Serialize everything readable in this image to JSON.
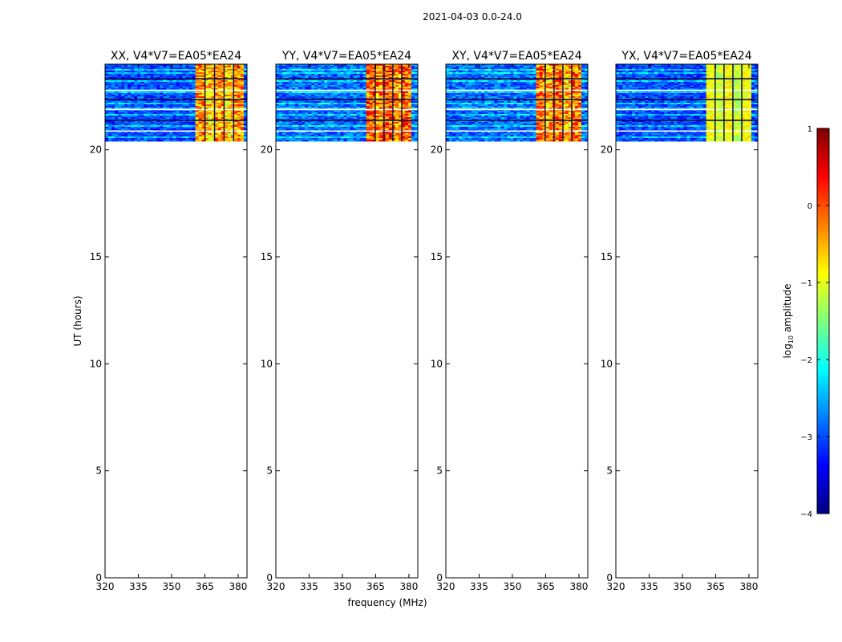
{
  "figure": {
    "suptitle": "2021-04-03 0.0-24.0",
    "xlabel": "frequency (MHz)",
    "ylabel": "UT (hours)"
  },
  "colorbar": {
    "label": "log10 amplitude",
    "label_main": "log",
    "label_sub": "10",
    "label_tail": " amplitude",
    "ticks": [
      1,
      0,
      -1,
      -2,
      -3,
      -4
    ],
    "tick_labels": [
      "1",
      "0",
      "−1",
      "−2",
      "−3",
      "−4"
    ],
    "range": [
      -4,
      1
    ],
    "colormap": "jet",
    "colors": [
      "#00007f",
      "#0000ff",
      "#007fff",
      "#00ffff",
      "#7fff7f",
      "#ffff00",
      "#ff7f00",
      "#ff0000",
      "#7f0000"
    ]
  },
  "chart_data": [
    {
      "type": "heatmap",
      "title": "XX, V4*V7=EA05*EA24",
      "xlabel": "",
      "ylabel": "UT (hours)",
      "xlim": [
        320,
        384
      ],
      "ylim": [
        0,
        24
      ],
      "x_ticks": [
        320,
        335,
        350,
        365,
        380
      ],
      "y_ticks": [
        0,
        5,
        10,
        15,
        20
      ],
      "data_time_range": [
        20.4,
        24.0
      ],
      "rfi_band_mhz": [
        360.5,
        382.0
      ],
      "rfi_level_log10": [
        -1.0,
        0.3
      ],
      "background_level_log10": [
        -3.4,
        -2.6
      ]
    },
    {
      "type": "heatmap",
      "title": "YY, V4*V7=EA05*EA24",
      "xlabel": "frequency (MHz)",
      "ylabel": "",
      "xlim": [
        320,
        384
      ],
      "ylim": [
        0,
        24
      ],
      "x_ticks": [
        320,
        335,
        350,
        365,
        380
      ],
      "y_ticks": [
        0,
        5,
        10,
        15,
        20
      ],
      "data_time_range": [
        20.4,
        24.0
      ],
      "rfi_band_mhz": [
        360.5,
        380.5
      ],
      "rfi_level_log10": [
        -0.8,
        0.7
      ],
      "background_level_log10": [
        -3.3,
        -2.4
      ]
    },
    {
      "type": "heatmap",
      "title": "XY, V4*V7=EA05*EA24",
      "xlabel": "",
      "ylabel": "",
      "xlim": [
        320,
        384
      ],
      "ylim": [
        0,
        24
      ],
      "x_ticks": [
        320,
        335,
        350,
        365,
        380
      ],
      "y_ticks": [
        0,
        5,
        10,
        15,
        20
      ],
      "data_time_range": [
        20.4,
        24.0
      ],
      "rfi_band_mhz": [
        360.5,
        380.5
      ],
      "rfi_level_log10": [
        -0.9,
        0.5
      ],
      "background_level_log10": [
        -3.3,
        -2.4
      ]
    },
    {
      "type": "heatmap",
      "title": "YX, V4*V7=EA05*EA24",
      "xlabel": "",
      "ylabel": "",
      "xlim": [
        320,
        384
      ],
      "ylim": [
        0,
        24
      ],
      "x_ticks": [
        320,
        335,
        350,
        365,
        380
      ],
      "y_ticks": [
        0,
        5,
        10,
        15,
        20
      ],
      "data_time_range": [
        20.4,
        24.0
      ],
      "rfi_band_mhz": [
        360.5,
        380.5
      ],
      "rfi_level_log10": [
        -1.2,
        -0.6
      ],
      "background_level_log10": [
        -3.4,
        -2.6
      ]
    }
  ]
}
